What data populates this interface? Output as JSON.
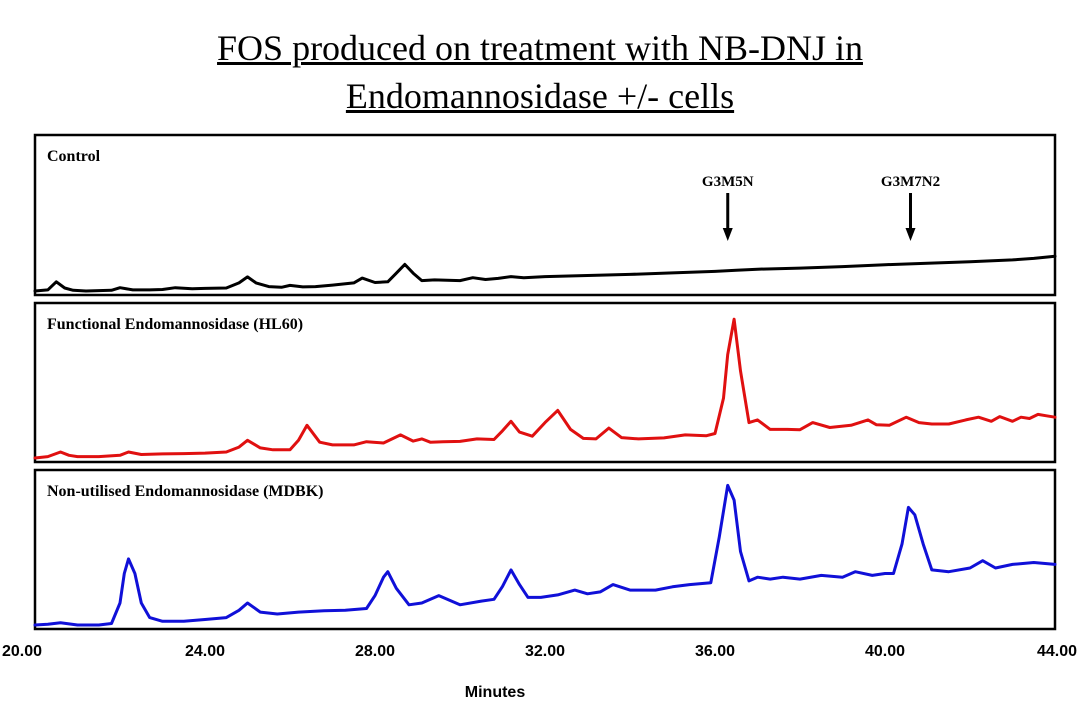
{
  "title": {
    "line1": "FOS produced on treatment with NB-DNJ in",
    "line2": "Endomannosidase +/- cells"
  },
  "chart_data": {
    "type": "line",
    "xlabel": "Minutes",
    "xlim": [
      20,
      44
    ],
    "xticks": [
      "20.00",
      "24.00",
      "28.00",
      "32.00",
      "36.00",
      "40.00",
      "44.00"
    ],
    "xtick_values": [
      20,
      24,
      28,
      32,
      36,
      40,
      44
    ],
    "grid": false,
    "series": [
      {
        "name": "Control",
        "color": "#000000",
        "x": [
          20.0,
          20.3,
          20.5,
          20.7,
          20.9,
          21.2,
          21.5,
          21.8,
          22.0,
          22.3,
          22.7,
          23.0,
          23.3,
          23.7,
          24.0,
          24.5,
          24.8,
          25.0,
          25.2,
          25.5,
          25.8,
          26.0,
          26.3,
          26.6,
          27.0,
          27.5,
          27.7,
          28.0,
          28.3,
          28.5,
          28.7,
          28.9,
          29.1,
          29.4,
          29.7,
          30.0,
          30.3,
          30.6,
          30.9,
          31.2,
          31.5,
          32.0,
          33.0,
          34.0,
          35.0,
          36.0,
          36.5,
          37.0,
          38.0,
          39.0,
          40.0,
          41.0,
          42.0,
          43.0,
          43.5,
          44.0
        ],
        "values": [
          0.0,
          0.3,
          2.5,
          0.8,
          0.2,
          0.0,
          0.1,
          0.2,
          0.9,
          0.3,
          0.3,
          0.4,
          0.9,
          0.6,
          0.7,
          0.8,
          2.2,
          3.8,
          2.2,
          1.2,
          1.0,
          1.5,
          1.1,
          1.2,
          1.6,
          2.2,
          3.5,
          2.3,
          2.5,
          4.8,
          7.2,
          4.8,
          2.8,
          3.0,
          2.9,
          2.8,
          3.6,
          3.1,
          3.4,
          3.9,
          3.6,
          3.9,
          4.2,
          4.5,
          4.9,
          5.3,
          5.6,
          5.9,
          6.2,
          6.6,
          7.1,
          7.5,
          7.9,
          8.4,
          8.8,
          9.4
        ]
      },
      {
        "name": "Functional Endomannosidase (HL60)",
        "color": "#e01010",
        "x": [
          20.0,
          20.3,
          20.6,
          20.8,
          21.0,
          21.5,
          22.0,
          22.2,
          22.5,
          23.0,
          23.5,
          24.0,
          24.5,
          24.8,
          25.0,
          25.3,
          25.6,
          26.0,
          26.2,
          26.4,
          26.7,
          27.0,
          27.5,
          27.8,
          28.2,
          28.6,
          28.9,
          29.1,
          29.3,
          29.6,
          30.0,
          30.4,
          30.8,
          31.0,
          31.2,
          31.4,
          31.7,
          32.0,
          32.3,
          32.6,
          32.9,
          33.2,
          33.5,
          33.8,
          34.2,
          34.8,
          35.3,
          35.8,
          36.0,
          36.2,
          36.3,
          36.45,
          36.6,
          36.8,
          37.0,
          37.3,
          37.7,
          38.0,
          38.3,
          38.7,
          39.2,
          39.6,
          39.8,
          40.1,
          40.5,
          40.8,
          41.1,
          41.5,
          41.9,
          42.2,
          42.5,
          42.7,
          43.0,
          43.2,
          43.4,
          43.6,
          43.8,
          44.0
        ],
        "values": [
          0.0,
          0.5,
          2.2,
          1.0,
          0.5,
          0.5,
          1.0,
          2.2,
          1.3,
          1.5,
          1.6,
          1.8,
          2.2,
          4.0,
          6.5,
          3.7,
          3.0,
          3.0,
          6.5,
          12.0,
          5.8,
          4.8,
          4.8,
          6.0,
          5.5,
          8.5,
          6.2,
          7.0,
          5.8,
          6.0,
          6.1,
          7.0,
          6.8,
          10.0,
          13.5,
          9.5,
          8.0,
          13.0,
          17.5,
          10.5,
          7.2,
          7.0,
          11.0,
          7.5,
          7.0,
          7.4,
          8.5,
          8.2,
          9.0,
          22.0,
          38.0,
          51.0,
          32.0,
          13.0,
          14.0,
          10.5,
          10.5,
          10.4,
          13.0,
          11.2,
          12.0,
          14.0,
          12.2,
          12.0,
          15.0,
          13.0,
          12.5,
          12.5,
          14.0,
          15.0,
          13.5,
          15.2,
          13.5,
          15.0,
          14.5,
          16.0,
          15.5,
          15.0
        ]
      },
      {
        "name": "Non-utilised Endomannosidase (MDBK)",
        "color": "#1010d8",
        "x": [
          20.0,
          20.3,
          20.6,
          21.0,
          21.5,
          21.8,
          22.0,
          22.1,
          22.2,
          22.35,
          22.5,
          22.7,
          23.0,
          23.5,
          24.0,
          24.5,
          24.8,
          25.0,
          25.3,
          25.7,
          26.2,
          26.8,
          27.3,
          27.8,
          28.0,
          28.2,
          28.3,
          28.5,
          28.8,
          29.1,
          29.5,
          30.0,
          30.5,
          30.8,
          31.0,
          31.2,
          31.4,
          31.6,
          31.9,
          32.3,
          32.7,
          33.0,
          33.3,
          33.6,
          34.0,
          34.6,
          35.0,
          35.4,
          35.9,
          36.1,
          36.3,
          36.45,
          36.6,
          36.8,
          37.0,
          37.3,
          37.6,
          38.0,
          38.5,
          39.0,
          39.3,
          39.7,
          40.0,
          40.2,
          40.4,
          40.55,
          40.7,
          40.9,
          41.1,
          41.5,
          42.0,
          42.3,
          42.6,
          43.0,
          43.5,
          44.0
        ],
        "values": [
          0.0,
          0.2,
          0.6,
          0.0,
          0.0,
          0.4,
          6.0,
          14.0,
          18.0,
          14.0,
          6.0,
          2.0,
          1.0,
          1.0,
          1.5,
          2.0,
          4.0,
          6.0,
          3.5,
          3.0,
          3.5,
          3.9,
          4.0,
          4.5,
          8.0,
          13.0,
          14.5,
          10.0,
          5.5,
          6.0,
          8.0,
          5.5,
          6.5,
          7.0,
          10.5,
          15.0,
          11.0,
          7.5,
          7.5,
          8.2,
          9.5,
          8.5,
          9.0,
          11.0,
          9.5,
          9.5,
          10.4,
          11.0,
          11.5,
          24.0,
          38.0,
          34.0,
          20.0,
          12.0,
          13.0,
          12.5,
          13.0,
          12.5,
          13.5,
          13.0,
          14.5,
          13.5,
          14.0,
          14.0,
          22.0,
          32.0,
          30.0,
          22.0,
          15.0,
          14.5,
          15.5,
          17.5,
          15.5,
          16.5,
          17.0,
          16.5
        ]
      }
    ],
    "panels": [
      {
        "label": "Control",
        "series": 0,
        "ymax": 40
      },
      {
        "label": "Functional Endomannosidase (HL60)",
        "series": 1,
        "ymax": 54
      },
      {
        "label": "Non-utilised Endomannosidase (MDBK)",
        "series": 2,
        "ymax": 40
      }
    ],
    "annotations": [
      {
        "text": "G3M5N",
        "x": 36.3,
        "panel": 0
      },
      {
        "text": "G3M7N2",
        "x": 40.6,
        "panel": 0
      }
    ]
  }
}
